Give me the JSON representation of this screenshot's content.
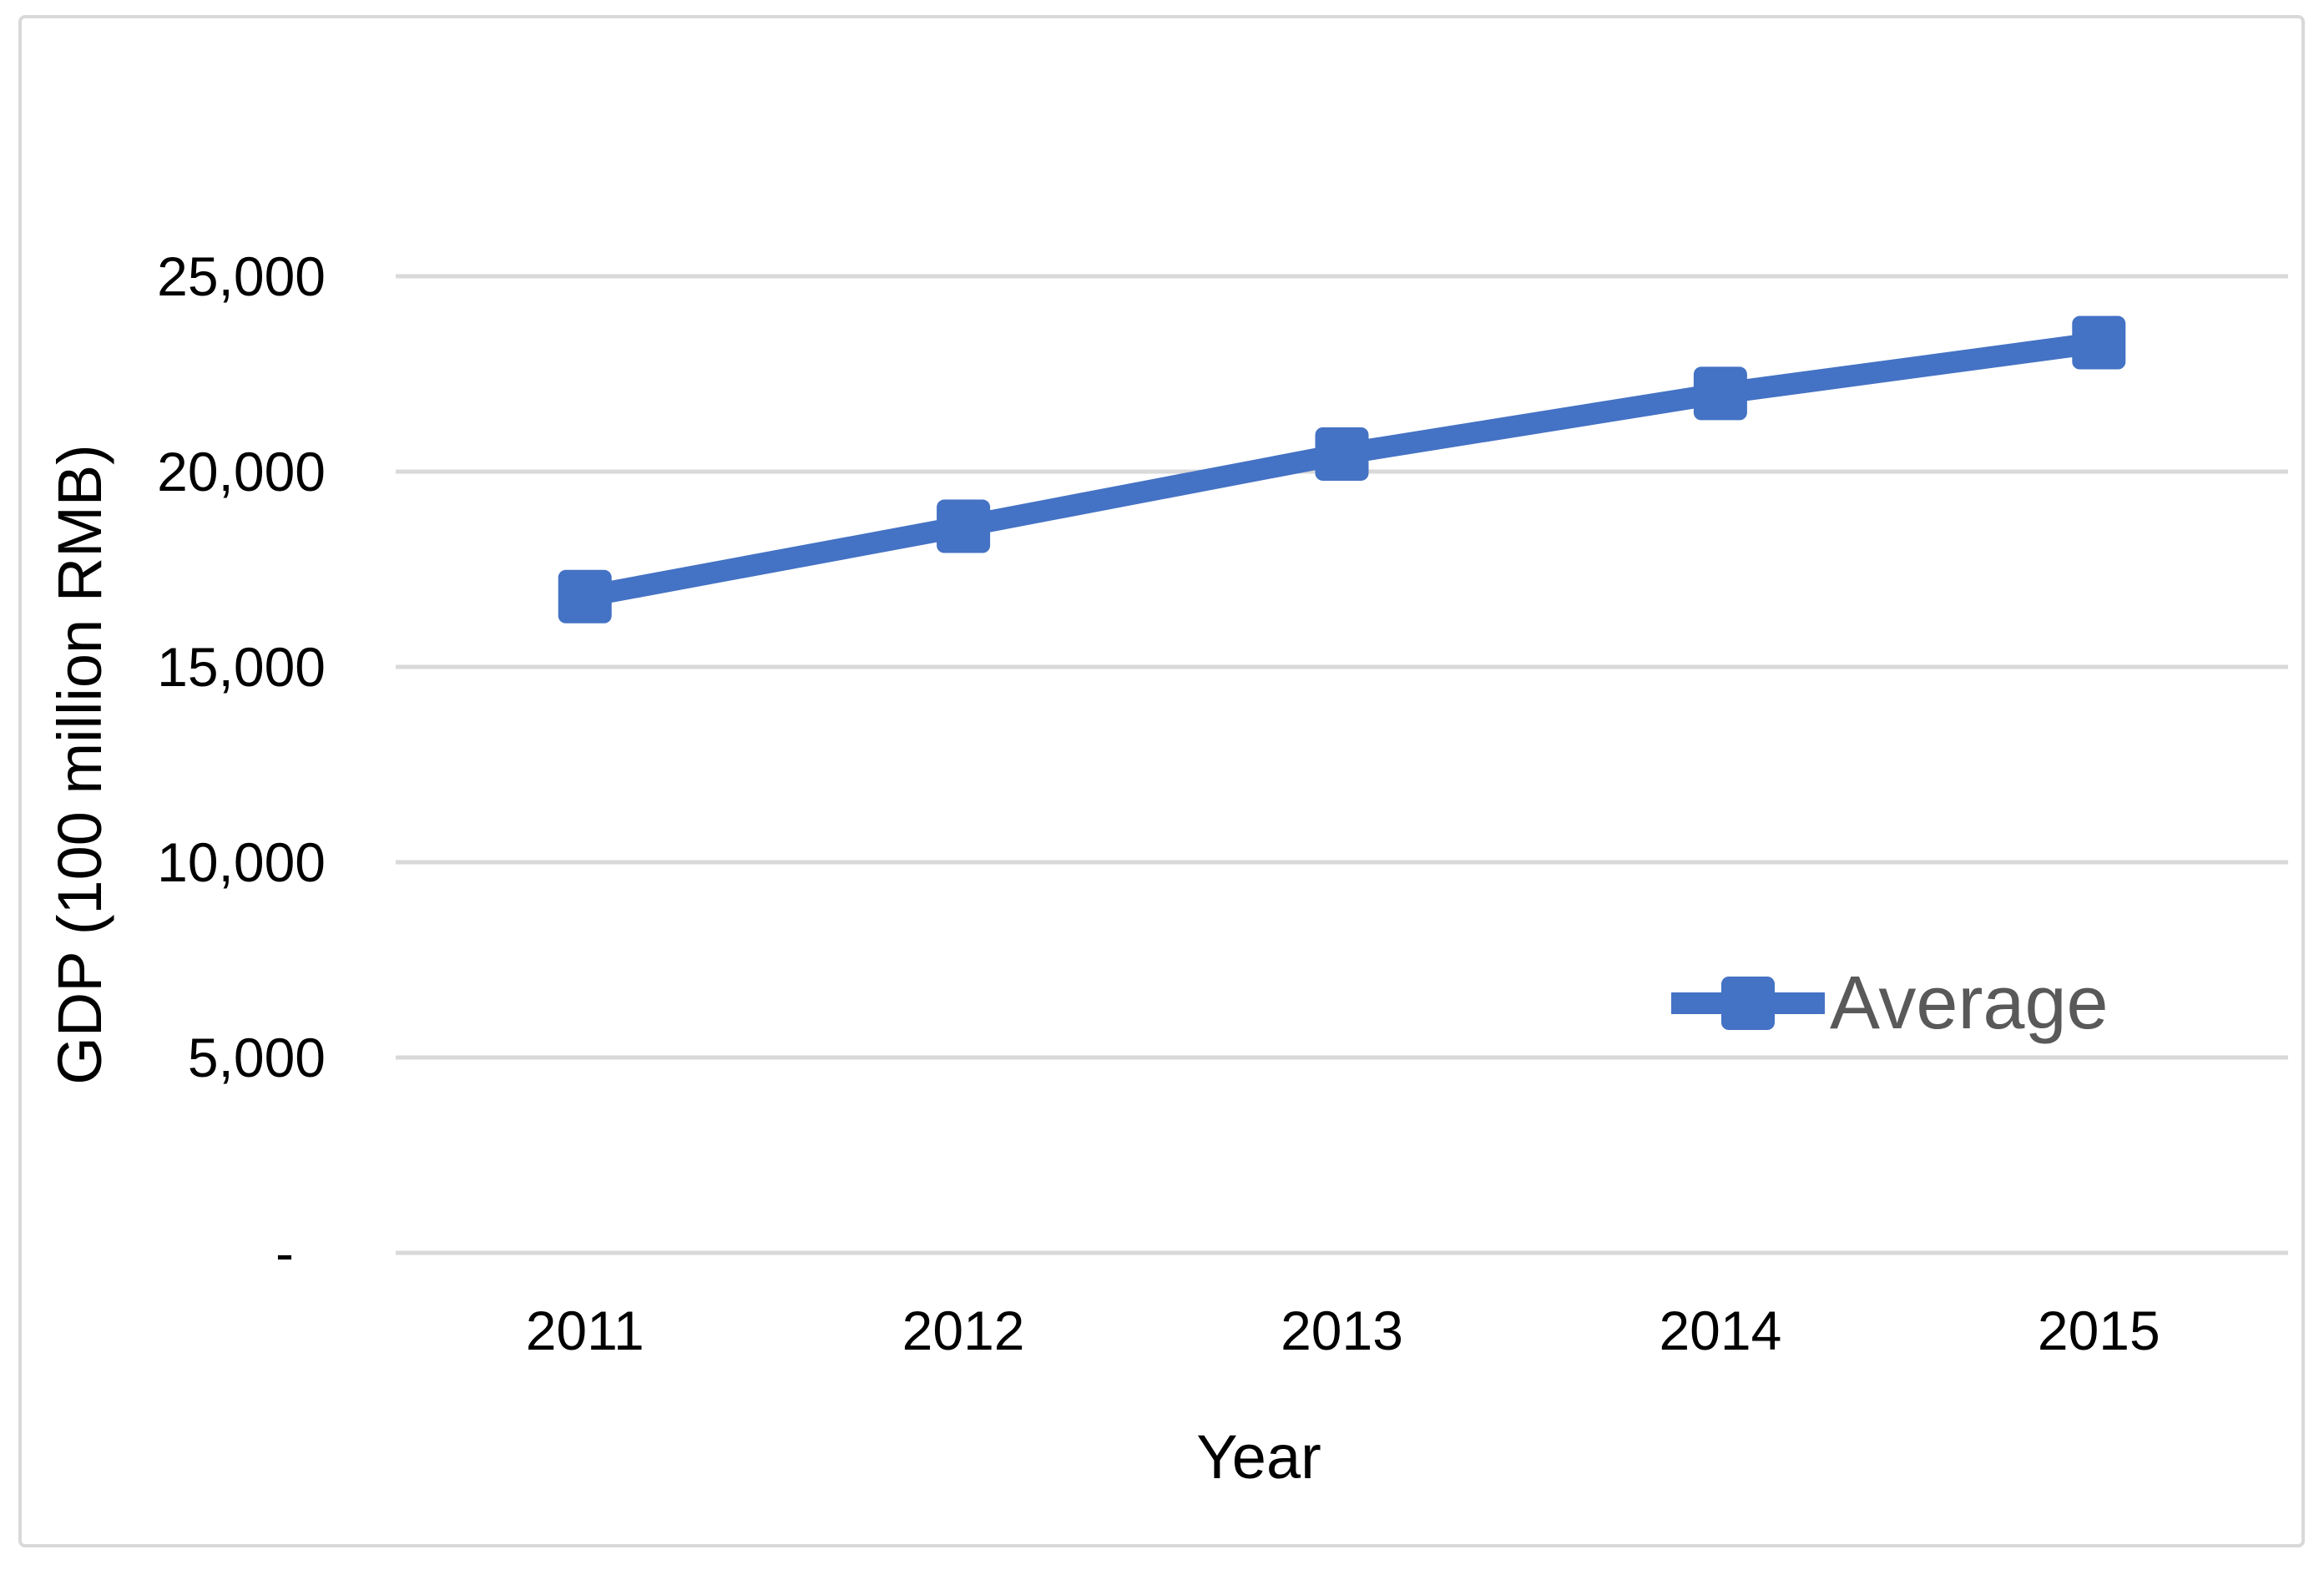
{
  "chart_data": {
    "type": "line",
    "categories": [
      "2011",
      "2012",
      "2013",
      "2014",
      "2015"
    ],
    "series": [
      {
        "name": "Average",
        "values": [
          16800,
          18600,
          20450,
          22000,
          23300
        ]
      }
    ],
    "title": "",
    "xlabel": "Year",
    "ylabel": "GDP (100 million RMB)",
    "ylim": [
      0,
      25000
    ],
    "ytick_interval": 5000,
    "ytick_labels": [
      "-",
      "5,000",
      "10,000",
      "15,000",
      "20,000",
      "25,000"
    ],
    "grid": true,
    "legend_position": "inside-right",
    "marker": "square"
  },
  "axes": {
    "x_title": "Year",
    "y_title": "GDP (100 million RMB)"
  },
  "legend": {
    "label": "Average"
  },
  "colors": {
    "series": "#4472C4",
    "gridline": "#D9D9D9",
    "frame_border": "#D9D9D9",
    "tick_text": "#000000",
    "axis_title_text": "#000000",
    "legend_text": "#595959",
    "background": "#FFFFFF"
  }
}
